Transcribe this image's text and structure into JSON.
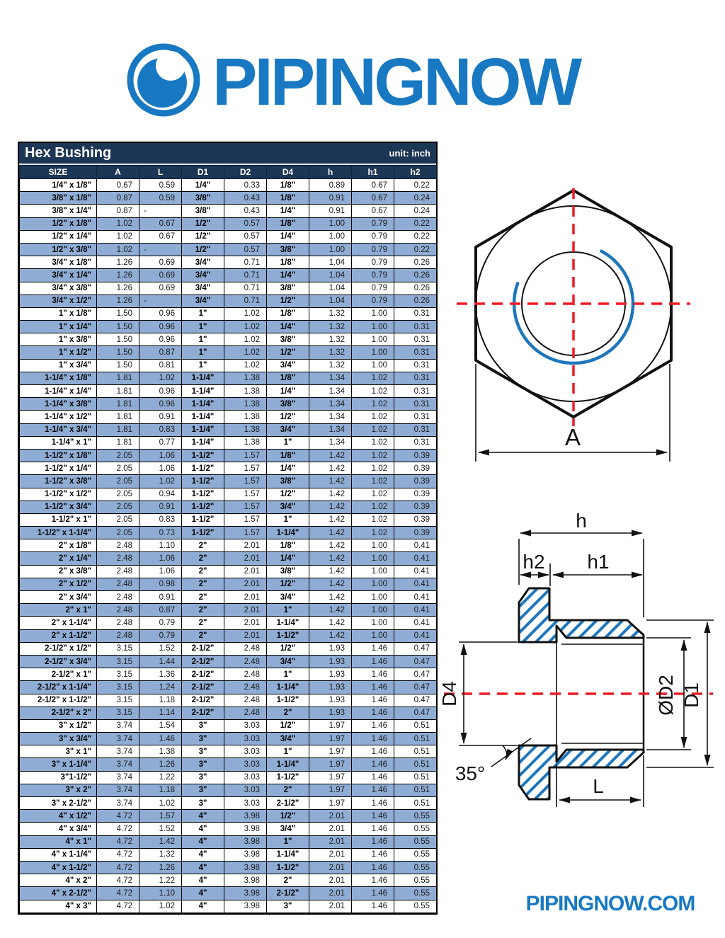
{
  "logo": {
    "text": "PIPINGNOW",
    "icon": "pipe-logo-icon"
  },
  "footer": {
    "website": "PIPINGNOW.COM"
  },
  "table": {
    "title": "Hex Bushing",
    "unit_label": "unit: inch",
    "columns": [
      "SIZE",
      "A",
      "L",
      "D1",
      "D2",
      "D4",
      "h",
      "h1",
      "h2"
    ],
    "rows": [
      [
        "1/4\" x 1/8\"",
        "0.67",
        "0.59",
        "1/4\"",
        "0.33",
        "1/8\"",
        "0.89",
        "0.67",
        "0.22"
      ],
      [
        "3/8\" x 1/8\"",
        "0.87",
        "0.59",
        "3/8\"",
        "0.43",
        "1/8\"",
        "0.91",
        "0.67",
        "0.24"
      ],
      [
        "3/8\" x 1/4\"",
        "0.87",
        "-",
        "3/8\"",
        "0.43",
        "1/4\"",
        "0.91",
        "0.67",
        "0.24"
      ],
      [
        "1/2\" x 1/8\"",
        "1.02",
        "0.67",
        "1/2\"",
        "0.57",
        "1/8\"",
        "1.00",
        "0.79",
        "0.22"
      ],
      [
        "1/2\" x 1/4\"",
        "1.02",
        "0.67",
        "1/2\"",
        "0.57",
        "1/4\"",
        "1.00",
        "0.79",
        "0.22"
      ],
      [
        "1/2\" x 3/8\"",
        "1.02",
        "-",
        "1/2\"",
        "0.57",
        "3/8\"",
        "1.00",
        "0.79",
        "0.22"
      ],
      [
        "3/4\" x 1/8\"",
        "1.26",
        "0.69",
        "3/4\"",
        "0.71",
        "1/8\"",
        "1.04",
        "0.79",
        "0.26"
      ],
      [
        "3/4\" x 1/4\"",
        "1.26",
        "0.69",
        "3/4\"",
        "0.71",
        "1/4\"",
        "1.04",
        "0.79",
        "0.26"
      ],
      [
        "3/4\" x 3/8\"",
        "1.26",
        "0.69",
        "3/4\"",
        "0.71",
        "3/8\"",
        "1.04",
        "0.79",
        "0.26"
      ],
      [
        "3/4\" x 1/2\"",
        "1.26",
        "-",
        "3/4\"",
        "0.71",
        "1/2\"",
        "1.04",
        "0.79",
        "0.26"
      ],
      [
        "1\" x 1/8\"",
        "1.50",
        "0.96",
        "1\"",
        "1.02",
        "1/8\"",
        "1.32",
        "1.00",
        "0.31"
      ],
      [
        "1\" x 1/4\"",
        "1.50",
        "0.96",
        "1\"",
        "1.02",
        "1/4\"",
        "1.32",
        "1.00",
        "0.31"
      ],
      [
        "1\" x 3/8\"",
        "1.50",
        "0.96",
        "1\"",
        "1.02",
        "3/8\"",
        "1.32",
        "1.00",
        "0.31"
      ],
      [
        "1\" x 1/2\"",
        "1.50",
        "0.87",
        "1\"",
        "1.02",
        "1/2\"",
        "1.32",
        "1.00",
        "0.31"
      ],
      [
        "1\" x 3/4\"",
        "1.50",
        "0.81",
        "1\"",
        "1.02",
        "3/4\"",
        "1.32",
        "1.00",
        "0.31"
      ],
      [
        "1-1/4\" x 1/8\"",
        "1.81",
        "1.02",
        "1-1/4\"",
        "1.38",
        "1/8\"",
        "1.34",
        "1.02",
        "0.31"
      ],
      [
        "1-1/4\" x 1/4\"",
        "1.81",
        "0.96",
        "1-1/4\"",
        "1.38",
        "1/4\"",
        "1.34",
        "1.02",
        "0.31"
      ],
      [
        "1-1/4\" x 3/8\"",
        "1.81",
        "0.96",
        "1-1/4\"",
        "1.38",
        "3/8\"",
        "1.34",
        "1.02",
        "0.31"
      ],
      [
        "1-1/4\" x 1/2\"",
        "1.81",
        "0.91",
        "1-1/4\"",
        "1.38",
        "1/2\"",
        "1.34",
        "1.02",
        "0.31"
      ],
      [
        "1-1/4\" x 3/4\"",
        "1.81",
        "0.83",
        "1-1/4\"",
        "1.38",
        "3/4\"",
        "1.34",
        "1.02",
        "0.31"
      ],
      [
        "1-1/4\" x 1\"",
        "1.81",
        "0.77",
        "1-1/4\"",
        "1.38",
        "1\"",
        "1.34",
        "1.02",
        "0.31"
      ],
      [
        "1-1/2\" x 1/8\"",
        "2.05",
        "1.06",
        "1-1/2\"",
        "1.57",
        "1/8\"",
        "1.42",
        "1.02",
        "0.39"
      ],
      [
        "1-1/2\" x 1/4\"",
        "2.05",
        "1.06",
        "1-1/2\"",
        "1.57",
        "1/4\"",
        "1.42",
        "1.02",
        "0.39"
      ],
      [
        "1-1/2\" x 3/8\"",
        "2.05",
        "1.02",
        "1-1/2\"",
        "1.57",
        "3/8\"",
        "1.42",
        "1.02",
        "0.39"
      ],
      [
        "1-1/2\" x 1/2\"",
        "2.05",
        "0.94",
        "1-1/2\"",
        "1.57",
        "1/2\"",
        "1.42",
        "1.02",
        "0.39"
      ],
      [
        "1-1/2\" x 3/4\"",
        "2.05",
        "0.91",
        "1-1/2\"",
        "1.57",
        "3/4\"",
        "1.42",
        "1.02",
        "0.39"
      ],
      [
        "1-1/2\" x 1\"",
        "2.05",
        "0.83",
        "1-1/2\"",
        "1.57",
        "1\"",
        "1.42",
        "1.02",
        "0.39"
      ],
      [
        "1-1/2\" x 1-1/4\"",
        "2.05",
        "0.73",
        "1-1/2\"",
        "1.57",
        "1-1/4\"",
        "1.42",
        "1.02",
        "0.39"
      ],
      [
        "2\" x 1/8\"",
        "2.48",
        "1.10",
        "2\"",
        "2.01",
        "1/8\"",
        "1.42",
        "1.00",
        "0.41"
      ],
      [
        "2\" x 1/4\"",
        "2.48",
        "1.06",
        "2\"",
        "2.01",
        "1/4\"",
        "1.42",
        "1.00",
        "0.41"
      ],
      [
        "2\" x 3/8\"",
        "2.48",
        "1.06",
        "2\"",
        "2.01",
        "3/8\"",
        "1.42",
        "1.00",
        "0.41"
      ],
      [
        "2\" x 1/2\"",
        "2.48",
        "0.98",
        "2\"",
        "2.01",
        "1/2\"",
        "1.42",
        "1.00",
        "0.41"
      ],
      [
        "2\" x 3/4\"",
        "2.48",
        "0.91",
        "2\"",
        "2.01",
        "3/4\"",
        "1.42",
        "1.00",
        "0.41"
      ],
      [
        "2\" x 1\"",
        "2.48",
        "0.87",
        "2\"",
        "2.01",
        "1\"",
        "1.42",
        "1.00",
        "0.41"
      ],
      [
        "2\" x 1-1/4\"",
        "2.48",
        "0.79",
        "2\"",
        "2.01",
        "1-1/4\"",
        "1.42",
        "1.00",
        "0.41"
      ],
      [
        "2\" x 1-1/2\"",
        "2.48",
        "0.79",
        "2\"",
        "2.01",
        "1-1/2\"",
        "1.42",
        "1.00",
        "0.41"
      ],
      [
        "2-1/2\" x 1/2\"",
        "3.15",
        "1.52",
        "2-1/2\"",
        "2.48",
        "1/2\"",
        "1.93",
        "1.46",
        "0.47"
      ],
      [
        "2-1/2\" x 3/4\"",
        "3.15",
        "1.44",
        "2-1/2\"",
        "2.48",
        "3/4\"",
        "1.93",
        "1.46",
        "0.47"
      ],
      [
        "2-1/2\" x 1\"",
        "3.15",
        "1.36",
        "2-1/2\"",
        "2.48",
        "1\"",
        "1.93",
        "1.46",
        "0.47"
      ],
      [
        "2-1/2\" x 1-1/4\"",
        "3.15",
        "1.24",
        "2-1/2\"",
        "2.48",
        "1-1/4\"",
        "1.93",
        "1.46",
        "0.47"
      ],
      [
        "2-1/2\" x 1-1/2\"",
        "3.15",
        "1.18",
        "2-1/2\"",
        "2.48",
        "1-1/2\"",
        "1.93",
        "1.46",
        "0.47"
      ],
      [
        "2-1/2\" x 2\"",
        "3.15",
        "1.14",
        "2-1/2\"",
        "2.48",
        "2\"",
        "1.93",
        "1.46",
        "0.47"
      ],
      [
        "3\" x 1/2\"",
        "3.74",
        "1.54",
        "3\"",
        "3.03",
        "1/2\"",
        "1.97",
        "1.46",
        "0.51"
      ],
      [
        "3\" x 3/4\"",
        "3.74",
        "1.46",
        "3\"",
        "3.03",
        "3/4\"",
        "1.97",
        "1.46",
        "0.51"
      ],
      [
        "3\" x 1\"",
        "3.74",
        "1.38",
        "3\"",
        "3.03",
        "1\"",
        "1.97",
        "1.46",
        "0.51"
      ],
      [
        "3\" x 1-1/4\"",
        "3.74",
        "1.26",
        "3\"",
        "3.03",
        "1-1/4\"",
        "1.97",
        "1.46",
        "0.51"
      ],
      [
        "3\"1-1/2\"",
        "3.74",
        "1.22",
        "3\"",
        "3.03",
        "1-1/2\"",
        "1.97",
        "1.46",
        "0.51"
      ],
      [
        "3\" x 2\"",
        "3.74",
        "1.18",
        "3\"",
        "3.03",
        "2\"",
        "1.97",
        "1.46",
        "0.51"
      ],
      [
        "3\" x 2-1/2\"",
        "3.74",
        "1.02",
        "3\"",
        "3.03",
        "2-1/2\"",
        "1.97",
        "1.46",
        "0.51"
      ],
      [
        "4\" x 1/2\"",
        "4.72",
        "1.57",
        "4\"",
        "3.98",
        "1/2\"",
        "2.01",
        "1.46",
        "0.55"
      ],
      [
        "4\" x 3/4\"",
        "4.72",
        "1.52",
        "4\"",
        "3.98",
        "3/4\"",
        "2.01",
        "1.46",
        "0.55"
      ],
      [
        "4\" x 1\"",
        "4.72",
        "1.42",
        "4\"",
        "3.98",
        "1\"",
        "2.01",
        "1.46",
        "0.55"
      ],
      [
        "4\" x 1-1/4\"",
        "4.72",
        "1.32",
        "4\"",
        "3.98",
        "1-1/4\"",
        "2.01",
        "1.46",
        "0.55"
      ],
      [
        "4\" x 1-1/2\"",
        "4.72",
        "1.26",
        "4\"",
        "3.98",
        "1-1/2\"",
        "2.01",
        "1.46",
        "0.55"
      ],
      [
        "4\" x 2\"",
        "4.72",
        "1.22",
        "4\"",
        "3.98",
        "2\"",
        "2.01",
        "1.46",
        "0.55"
      ],
      [
        "4\" x 2-1/2\"",
        "4.72",
        "1.10",
        "4\"",
        "3.98",
        "2-1/2\"",
        "2.01",
        "1.46",
        "0.55"
      ],
      [
        "4\" x 3\"",
        "4.72",
        "1.02",
        "4\"",
        "3.98",
        "3\"",
        "2.01",
        "1.46",
        "0.55"
      ]
    ]
  },
  "diagrams": {
    "top_view": {
      "dimension_a": "A"
    },
    "section_view": {
      "h": "h",
      "h2": "h2",
      "h1": "h1",
      "d4": "D4",
      "d2": "ØD2",
      "d1": "D1",
      "l": "L",
      "angle": "35°"
    }
  },
  "colors": {
    "navy": "#1c3655",
    "row_alt": "#8fadd4",
    "brand_blue": "#1879c2",
    "drawing_blue": "#1d76bc",
    "centerline_red": "#ee1c25"
  }
}
